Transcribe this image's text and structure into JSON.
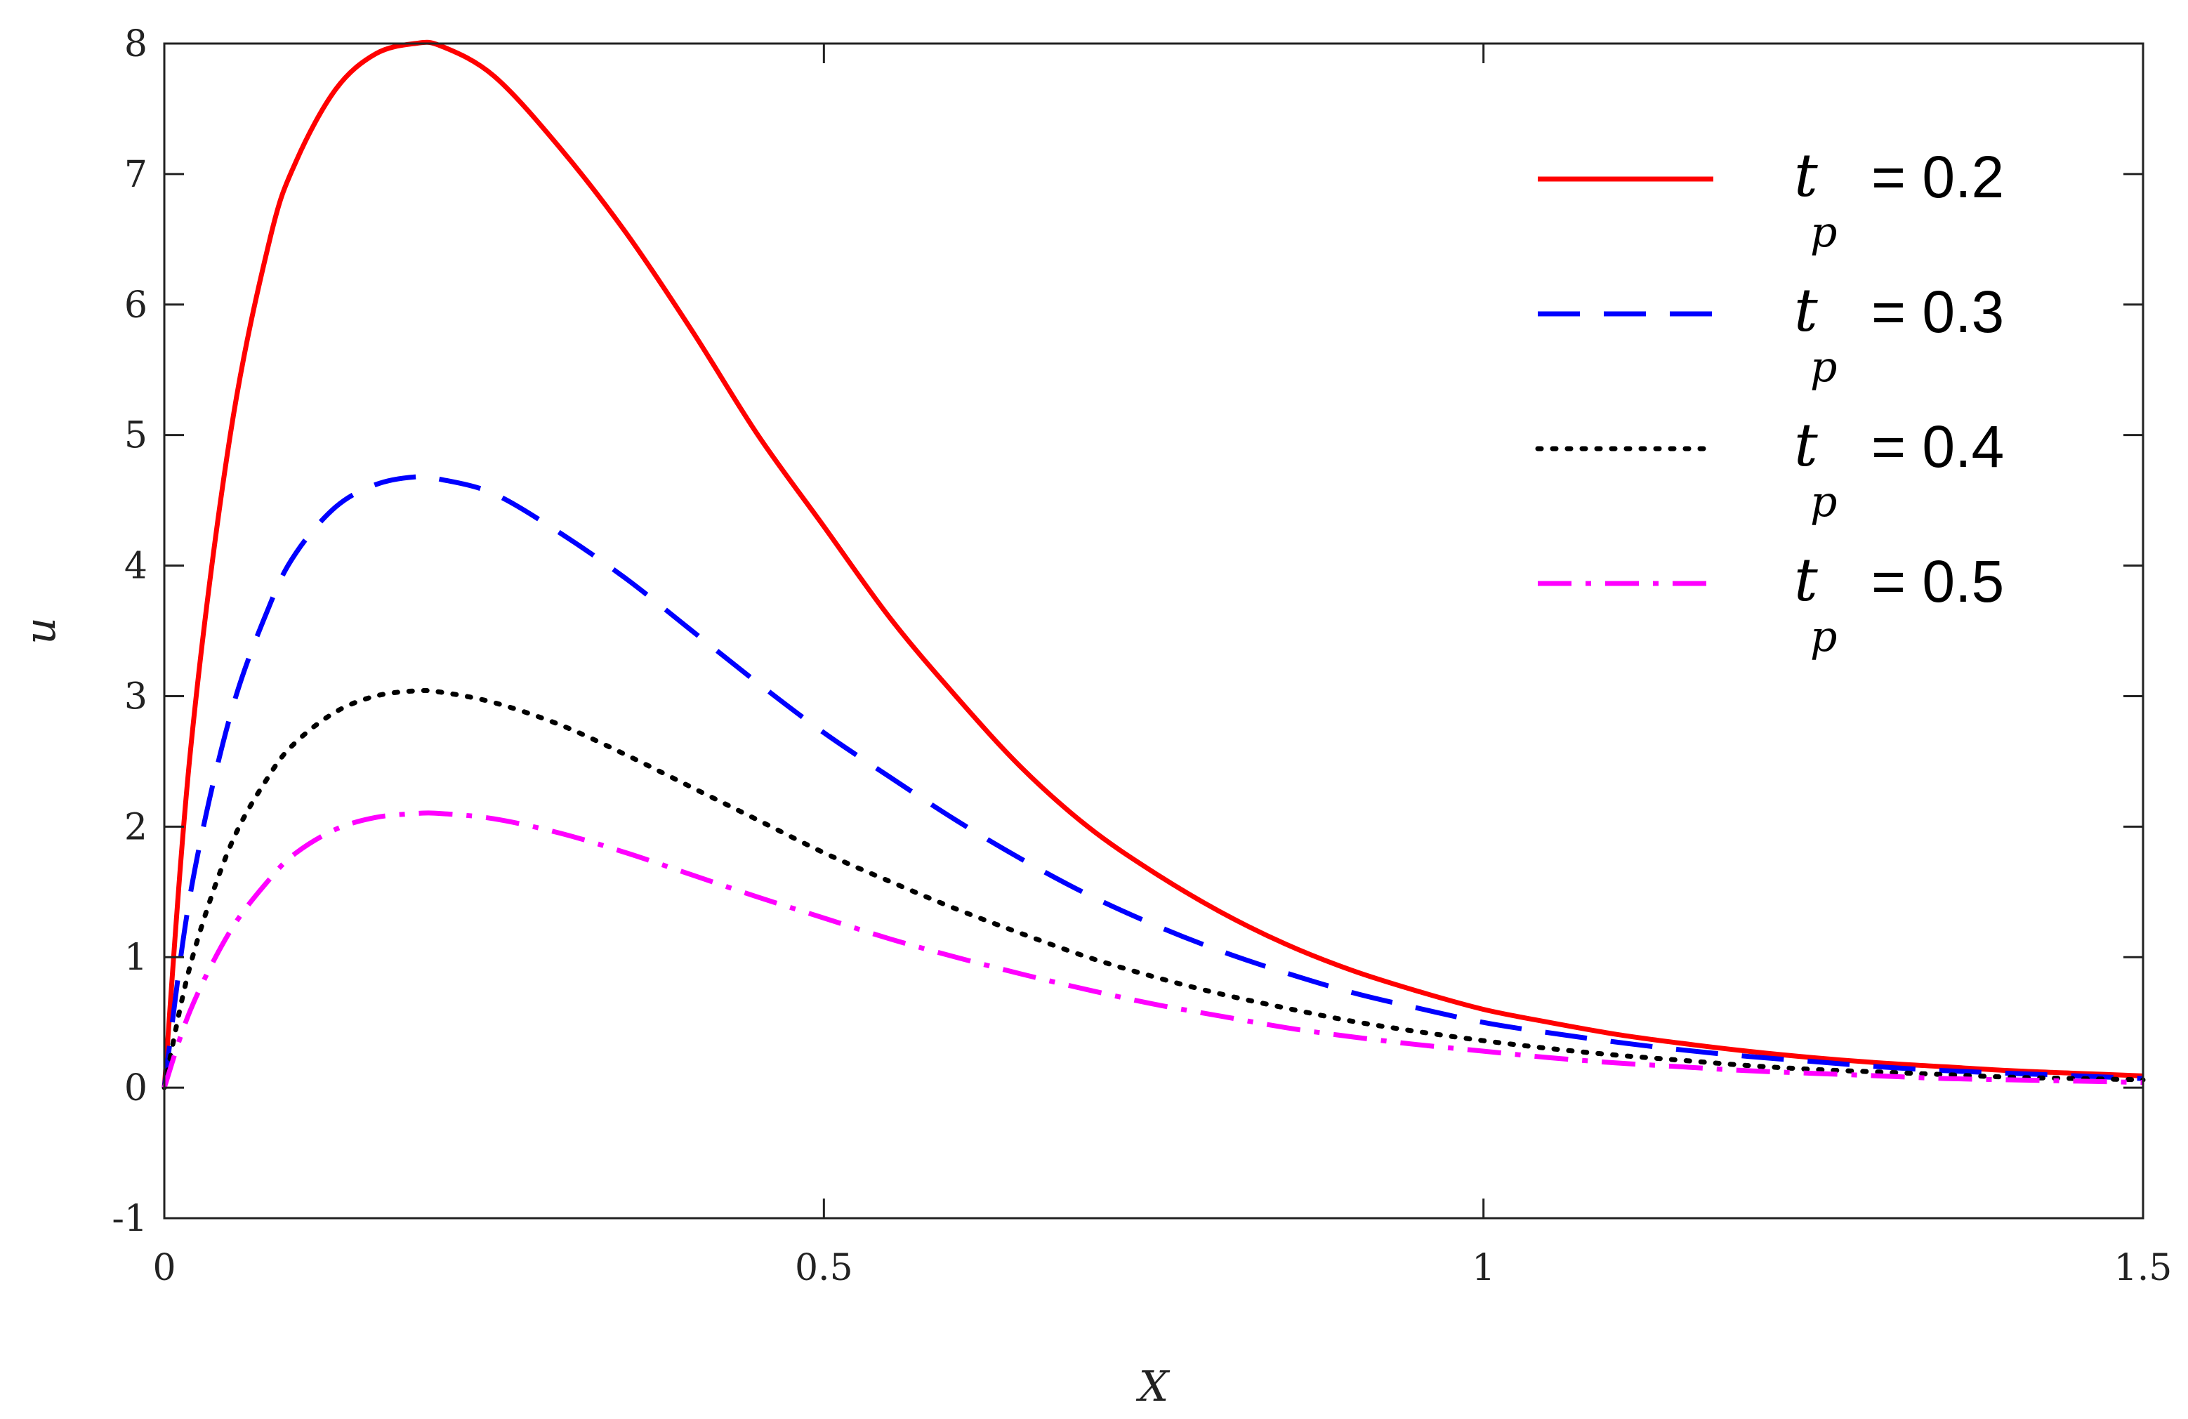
{
  "chart_data": {
    "type": "line",
    "title": "",
    "xlabel": "X",
    "ylabel": "u",
    "xlim": [
      0,
      1.5
    ],
    "ylim": [
      -1,
      8
    ],
    "x_ticks": [
      "0",
      "0.5",
      "1",
      "1.5"
    ],
    "y_ticks": [
      "-1",
      "0",
      "1",
      "2",
      "3",
      "4",
      "5",
      "6",
      "7",
      "8"
    ],
    "x_tick_values": [
      0,
      0.5,
      1,
      1.5
    ],
    "y_tick_values": [
      -1,
      0,
      1,
      2,
      3,
      4,
      5,
      6,
      7,
      8
    ],
    "grid": false,
    "legend_position": "top-right",
    "series": [
      {
        "name": "t_p = 0.2",
        "legend_symbol": "t",
        "legend_subscript": "p",
        "legend_value": "= 0.2",
        "color": "#ff0000",
        "style": "solid",
        "x": [
          0,
          0.02,
          0.05,
          0.08,
          0.1,
          0.13,
          0.16,
          0.19,
          0.21,
          0.25,
          0.3,
          0.35,
          0.4,
          0.45,
          0.5,
          0.55,
          0.6,
          0.65,
          0.7,
          0.75,
          0.8,
          0.85,
          0.9,
          0.95,
          1.0,
          1.05,
          1.1,
          1.15,
          1.2,
          1.25,
          1.3,
          1.35,
          1.4,
          1.45,
          1.5
        ],
        "y": [
          0,
          2.6,
          5.0,
          6.5,
          7.1,
          7.65,
          7.92,
          8.0,
          7.98,
          7.75,
          7.2,
          6.55,
          5.8,
          5.0,
          4.3,
          3.6,
          3.0,
          2.45,
          2.0,
          1.65,
          1.35,
          1.1,
          0.9,
          0.74,
          0.6,
          0.5,
          0.41,
          0.34,
          0.28,
          0.23,
          0.19,
          0.16,
          0.13,
          0.11,
          0.09
        ]
      },
      {
        "name": "t_p = 0.3",
        "legend_symbol": "t",
        "legend_subscript": "p",
        "legend_value": "= 0.3",
        "color": "#0000ff",
        "style": "dashed",
        "x": [
          0,
          0.02,
          0.05,
          0.08,
          0.1,
          0.13,
          0.16,
          0.19,
          0.21,
          0.25,
          0.3,
          0.35,
          0.4,
          0.45,
          0.5,
          0.55,
          0.6,
          0.65,
          0.7,
          0.75,
          0.8,
          0.85,
          0.9,
          0.95,
          1.0,
          1.05,
          1.1,
          1.15,
          1.2,
          1.25,
          1.3,
          1.35,
          1.4,
          1.45,
          1.5
        ],
        "y": [
          0,
          1.5,
          2.85,
          3.7,
          4.1,
          4.45,
          4.62,
          4.68,
          4.66,
          4.55,
          4.25,
          3.9,
          3.5,
          3.1,
          2.72,
          2.38,
          2.05,
          1.75,
          1.48,
          1.25,
          1.05,
          0.88,
          0.73,
          0.61,
          0.5,
          0.42,
          0.35,
          0.29,
          0.24,
          0.2,
          0.16,
          0.13,
          0.11,
          0.09,
          0.07
        ]
      },
      {
        "name": "t_p = 0.4",
        "legend_symbol": "t",
        "legend_subscript": "p",
        "legend_value": "= 0.4",
        "color": "#000000",
        "style": "dotted",
        "x": [
          0,
          0.02,
          0.05,
          0.08,
          0.1,
          0.13,
          0.16,
          0.19,
          0.21,
          0.25,
          0.3,
          0.35,
          0.4,
          0.45,
          0.5,
          0.55,
          0.6,
          0.65,
          0.7,
          0.75,
          0.8,
          0.85,
          0.9,
          0.95,
          1.0,
          1.05,
          1.1,
          1.15,
          1.2,
          1.25,
          1.3,
          1.35,
          1.4,
          1.45,
          1.5
        ],
        "y": [
          0,
          0.95,
          1.85,
          2.4,
          2.65,
          2.88,
          3.0,
          3.04,
          3.03,
          2.95,
          2.78,
          2.55,
          2.3,
          2.05,
          1.8,
          1.58,
          1.37,
          1.18,
          1.0,
          0.85,
          0.72,
          0.61,
          0.51,
          0.43,
          0.36,
          0.3,
          0.25,
          0.21,
          0.17,
          0.14,
          0.12,
          0.1,
          0.08,
          0.07,
          0.06
        ]
      },
      {
        "name": "t_p = 0.5",
        "legend_symbol": "t",
        "legend_subscript": "p",
        "legend_value": "= 0.5",
        "color": "#ff00ff",
        "style": "dashdot",
        "x": [
          0,
          0.02,
          0.05,
          0.08,
          0.1,
          0.13,
          0.16,
          0.19,
          0.21,
          0.25,
          0.3,
          0.35,
          0.4,
          0.45,
          0.5,
          0.55,
          0.6,
          0.65,
          0.7,
          0.75,
          0.8,
          0.85,
          0.9,
          0.95,
          1.0,
          1.05,
          1.1,
          1.15,
          1.2,
          1.25,
          1.3,
          1.35,
          1.4,
          1.45,
          1.5
        ],
        "y": [
          0,
          0.6,
          1.2,
          1.6,
          1.8,
          1.98,
          2.07,
          2.1,
          2.1,
          2.06,
          1.95,
          1.8,
          1.63,
          1.46,
          1.3,
          1.14,
          1.0,
          0.87,
          0.75,
          0.64,
          0.55,
          0.46,
          0.39,
          0.33,
          0.28,
          0.23,
          0.19,
          0.16,
          0.13,
          0.11,
          0.09,
          0.07,
          0.06,
          0.05,
          0.04
        ]
      }
    ]
  }
}
